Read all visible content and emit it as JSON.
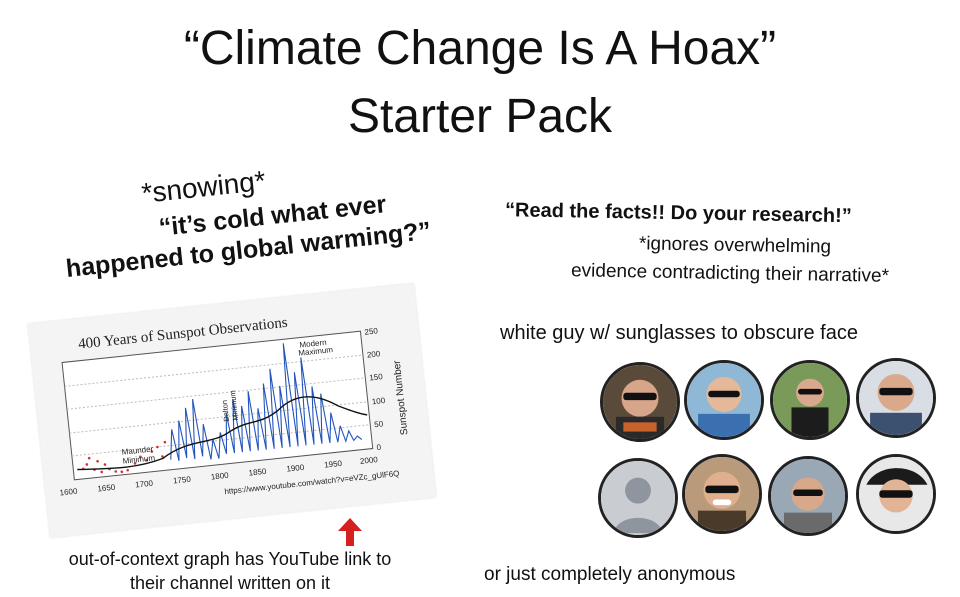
{
  "title": {
    "line1": "“Climate Change Is A Hoax”",
    "line2": "Starter Pack"
  },
  "left_quote": {
    "action": "*snowing*",
    "line1": "“it’s cold what ever",
    "line2": "happened to global warming?”"
  },
  "right_quote": {
    "headline": "“Read the facts!! Do your research!”",
    "line1": "*ignores overwhelming",
    "line2": "evidence contradicting their narrative*"
  },
  "graph": {
    "title": "400 Years of Sunspot Observations",
    "maunder": [
      "Maunder",
      "Minimum"
    ],
    "dalton": [
      "Dalton",
      "Minimum"
    ],
    "modern": [
      "Modern",
      "Maximum"
    ],
    "ylabel": "Sunspot Number",
    "url": "https://www.youtube.com/watch?v=eVZc_gUlF6Q",
    "x_ticks": [
      "1600",
      "1650",
      "1700",
      "1750",
      "1800",
      "1850",
      "1900",
      "1950",
      "2000"
    ],
    "y_ticks": [
      "250",
      "200",
      "150",
      "100",
      "50",
      "0"
    ]
  },
  "graph_caption": {
    "line1": "out-of-context graph has YouTube link to",
    "line2": "their channel written on it"
  },
  "sunglasses_caption": "white guy w/ sunglasses to obscure face",
  "anonymous_caption": "or just completely anonymous",
  "colors": {
    "text": "#111111",
    "graph_line": "#2255bb",
    "graph_dots": "#cc3333",
    "arrow": "#d62020"
  },
  "icons": [
    "anonymous-avatar-icon",
    "red-up-arrow-icon"
  ]
}
